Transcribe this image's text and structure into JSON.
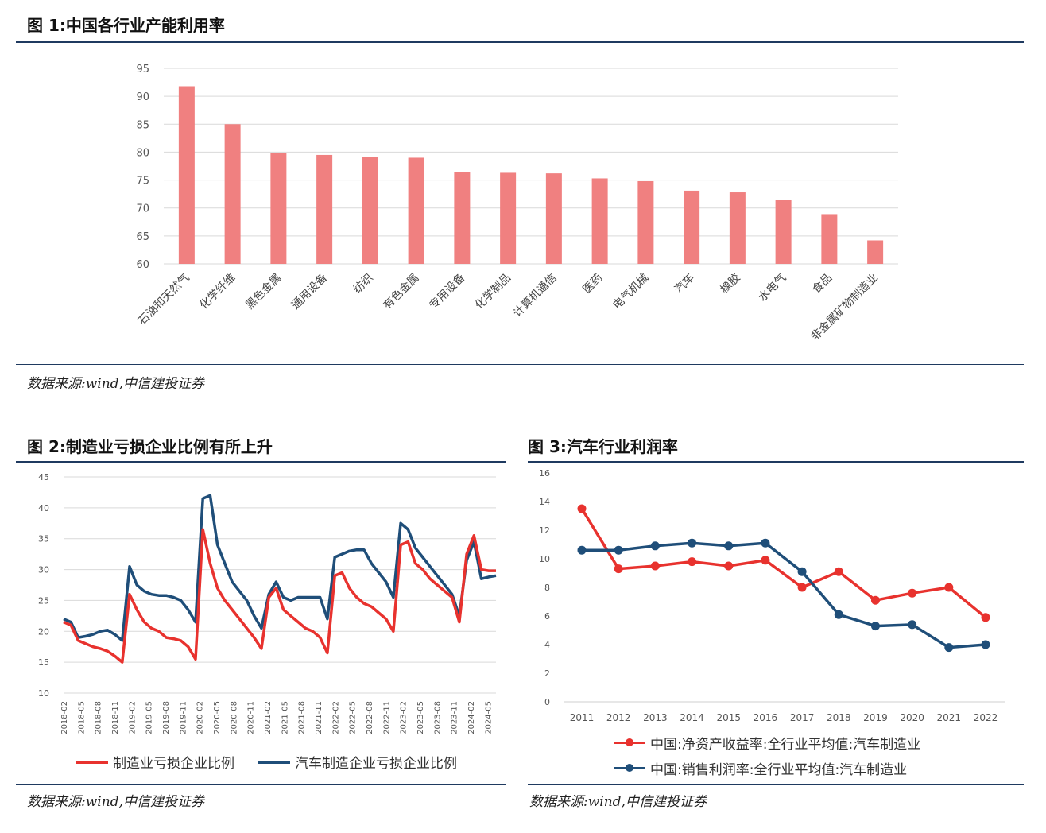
{
  "fig1": {
    "title": "图 1:中国各行业产能利用率",
    "source": "数据来源:wind,中信建投证券"
  },
  "fig2": {
    "title": "图 2:制造业亏损企业比例有所上升",
    "source": "数据来源:wind,中信建投证券"
  },
  "fig3": {
    "title": "图 3:汽车行业利润率",
    "source": "数据来源:wind,中信建投证券"
  },
  "colors": {
    "bar": "#f08080",
    "red": "#e8322e",
    "blue": "#1f4e79",
    "grid": "#d9d9d9",
    "rule": "#1f3a60"
  },
  "chart_data": [
    {
      "type": "bar",
      "title": "",
      "categories": [
        "石油和天然气",
        "化学纤维",
        "黑色金属",
        "通用设备",
        "纺织",
        "有色金属",
        "专用设备",
        "化学制品",
        "计算机通信",
        "医药",
        "电气机械",
        "汽车",
        "橡胶",
        "水电气",
        "食品",
        "非金属矿物制造业"
      ],
      "values": [
        91.8,
        85.0,
        79.8,
        79.5,
        79.1,
        79.0,
        76.5,
        76.3,
        76.2,
        75.3,
        74.8,
        73.1,
        72.8,
        71.4,
        68.9,
        64.2
      ],
      "ylim": [
        60,
        95
      ],
      "yticks": [
        "60",
        "65",
        "70",
        "75",
        "80",
        "85",
        "90",
        "95"
      ],
      "grid": true
    },
    {
      "type": "line",
      "ylim": [
        10,
        45
      ],
      "yticks": [
        "10",
        "15",
        "20",
        "25",
        "30",
        "35",
        "40",
        "45"
      ],
      "xticks": [
        "2018-02",
        "2018-05",
        "2018-08",
        "2018-11",
        "2019-02",
        "2019-05",
        "2019-08",
        "2019-11",
        "2020-02",
        "2020-05",
        "2020-08",
        "2020-11",
        "2021-02",
        "2021-05",
        "2021-08",
        "2021-11",
        "2022-02",
        "2022-05",
        "2022-08",
        "2022-11",
        "2023-02",
        "2023-05",
        "2023-08",
        "2023-11",
        "2024-02",
        "2024-05"
      ],
      "grid": true,
      "legend_position": "bottom",
      "series": [
        {
          "name": "制造业亏损企业比例",
          "values": [
            21.5,
            21.0,
            18.5,
            18.0,
            17.5,
            17.2,
            16.8,
            16.0,
            15.0,
            26.0,
            23.5,
            21.5,
            20.5,
            20.0,
            19.0,
            18.8,
            18.5,
            17.5,
            15.5,
            36.5,
            31.0,
            27.0,
            25.0,
            23.5,
            22.0,
            20.5,
            19.0,
            17.2,
            25.5,
            27.0,
            23.5,
            22.5,
            21.5,
            20.5,
            20.0,
            19.0,
            16.5,
            29.0,
            29.5,
            27.0,
            25.5,
            24.5,
            24.0,
            23.0,
            22.0,
            20.0,
            34.0,
            34.5,
            31.0,
            30.0,
            28.5,
            27.5,
            26.5,
            25.5,
            21.5,
            32.5,
            35.5,
            30.0,
            29.8,
            29.8
          ]
        },
        {
          "name": "汽车制造企业亏损企业比例",
          "values": [
            22.0,
            21.5,
            19.0,
            19.2,
            19.5,
            20.0,
            20.2,
            19.5,
            18.5,
            30.5,
            27.5,
            26.5,
            26.0,
            25.8,
            25.8,
            25.5,
            25.0,
            23.5,
            21.5,
            41.5,
            42.0,
            34.0,
            31.0,
            28.0,
            26.5,
            25.0,
            22.5,
            20.5,
            26.0,
            28.0,
            25.5,
            25.0,
            25.5,
            25.5,
            25.5,
            25.5,
            22.0,
            32.0,
            32.5,
            33.0,
            33.2,
            33.2,
            31.0,
            29.5,
            28.0,
            25.5,
            37.5,
            36.5,
            33.5,
            32.0,
            30.5,
            29.0,
            27.5,
            26.0,
            22.5,
            31.5,
            34.5,
            28.5,
            28.8,
            29.0
          ]
        }
      ]
    },
    {
      "type": "line",
      "categories": [
        "2011",
        "2012",
        "2013",
        "2014",
        "2015",
        "2016",
        "2017",
        "2018",
        "2019",
        "2020",
        "2021",
        "2022"
      ],
      "ylim": [
        0,
        16
      ],
      "yticks": [
        "0",
        "2",
        "4",
        "6",
        "8",
        "10",
        "12",
        "14",
        "16"
      ],
      "grid": false,
      "legend_position": "bottom",
      "series": [
        {
          "name": "中国:净资产收益率:全行业平均值:汽车制造业",
          "values": [
            13.5,
            9.3,
            9.5,
            9.8,
            9.5,
            9.9,
            8.0,
            9.1,
            7.1,
            7.6,
            8.0,
            5.9
          ]
        },
        {
          "name": "中国:销售利润率:全行业平均值:汽车制造业",
          "values": [
            10.6,
            10.6,
            10.9,
            11.1,
            10.9,
            11.1,
            9.1,
            6.1,
            5.3,
            5.4,
            3.8,
            4.0
          ]
        }
      ]
    }
  ]
}
